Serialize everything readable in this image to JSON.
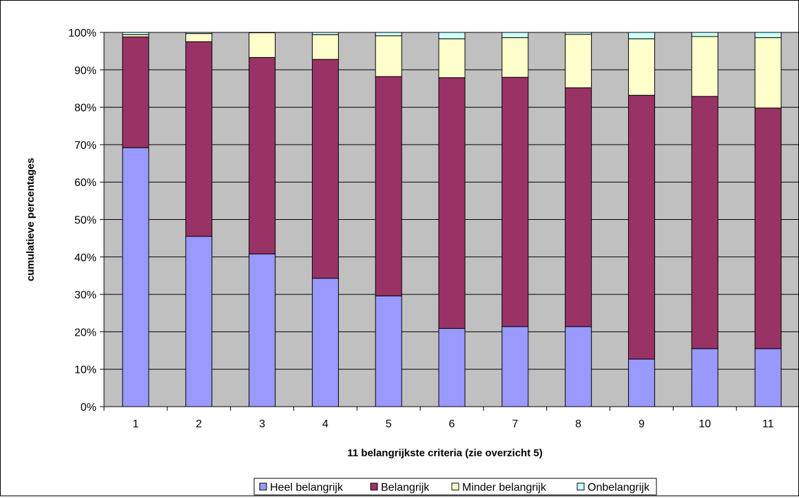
{
  "chart_data": {
    "type": "bar",
    "stacked": true,
    "categories": [
      "1",
      "2",
      "3",
      "4",
      "5",
      "6",
      "7",
      "8",
      "9",
      "10",
      "11"
    ],
    "series": [
      {
        "name": "Heel belangrijk",
        "color": "#9999ff",
        "values": [
          69.2,
          45.5,
          40.8,
          34.3,
          29.6,
          20.9,
          21.4,
          21.4,
          12.7,
          15.5,
          15.5
        ]
      },
      {
        "name": "Belangrijk",
        "color": "#993366",
        "values": [
          29.6,
          52.0,
          52.5,
          58.5,
          58.6,
          67.0,
          66.6,
          63.8,
          70.5,
          67.4,
          64.3
        ]
      },
      {
        "name": "Minder belangrijk",
        "color": "#ffffcc",
        "values": [
          0.6,
          2.2,
          6.6,
          6.6,
          10.9,
          10.4,
          10.6,
          14.3,
          15.1,
          16.0,
          18.8
        ]
      },
      {
        "name": "Onbelangrijk",
        "color": "#ccffff",
        "values": [
          0.6,
          0.3,
          0.1,
          0.6,
          0.9,
          1.7,
          1.4,
          0.5,
          1.7,
          1.1,
          1.4
        ]
      }
    ],
    "xlabel": "11 belangrijkste criteria (zie overzicht 5)",
    "ylabel": "cumulatieve percentages",
    "ylim": [
      0,
      100
    ],
    "yticks": [
      "0%",
      "10%",
      "20%",
      "30%",
      "40%",
      "50%",
      "60%",
      "70%",
      "80%",
      "90%",
      "100%"
    ],
    "plot_background": "#c0c0c0",
    "grid": true,
    "legend_position": "bottom"
  }
}
